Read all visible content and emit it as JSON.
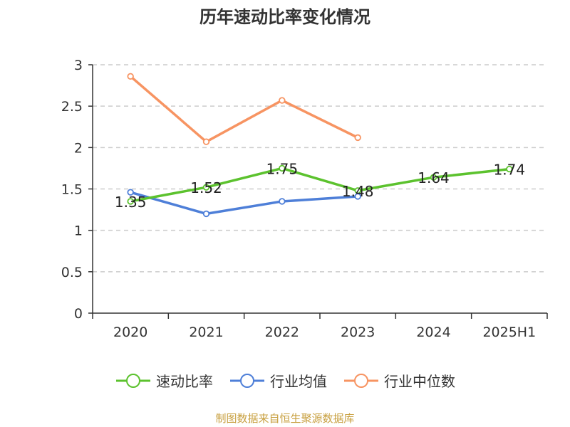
{
  "title": "历年速动比率变化情况",
  "source": "制图数据来自恒生聚源数据库",
  "chart_data": {
    "type": "line",
    "title": "历年速动比率变化情况",
    "xlabel": "",
    "ylabel": "",
    "categories": [
      "2020",
      "2021",
      "2022",
      "2023",
      "2024",
      "2025H1"
    ],
    "ylim": [
      0,
      3
    ],
    "yticks": [
      0,
      0.5,
      1,
      1.5,
      2,
      2.5,
      3
    ],
    "ytick_labels": [
      "0",
      "0.5",
      "1",
      "1.5",
      "2",
      "2.5",
      "3"
    ],
    "grid": true,
    "legend_position": "bottom",
    "series": [
      {
        "name": "速动比率",
        "color": "#5cc22e",
        "values": [
          1.35,
          1.52,
          1.75,
          1.48,
          1.64,
          1.74
        ],
        "labels": [
          "1.35",
          "1.52",
          "1.75",
          "1.48",
          "1.64",
          "1.74"
        ],
        "show_labels": true
      },
      {
        "name": "行业均值",
        "color": "#4e7fd8",
        "values": [
          1.46,
          1.2,
          1.35,
          1.41,
          null,
          null
        ],
        "show_labels": false
      },
      {
        "name": "行业中位数",
        "color": "#f79462",
        "values": [
          2.86,
          2.07,
          2.57,
          2.12,
          null,
          null
        ],
        "show_labels": false
      }
    ]
  }
}
